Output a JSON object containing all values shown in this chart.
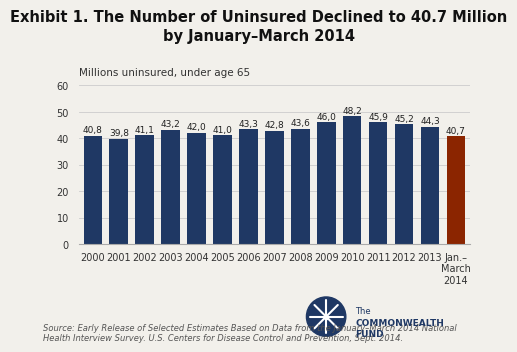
{
  "title": "Exhibit 1. The Number of Uninsured Declined to 40.7 Million\nby January–March 2014",
  "ylabel": "Millions uninsured, under age 65",
  "categories": [
    "2000",
    "2001",
    "2002",
    "2003",
    "2004",
    "2005",
    "2006",
    "2007",
    "2008",
    "2009",
    "2010",
    "2011",
    "2012",
    "2013",
    "Jan.–\nMarch\n2014"
  ],
  "values": [
    40.8,
    39.8,
    41.1,
    43.2,
    42.0,
    41.0,
    43.3,
    42.8,
    43.6,
    46.0,
    48.2,
    45.9,
    45.2,
    44.3,
    40.7
  ],
  "bar_colors": [
    "#1F3864",
    "#1F3864",
    "#1F3864",
    "#1F3864",
    "#1F3864",
    "#1F3864",
    "#1F3864",
    "#1F3864",
    "#1F3864",
    "#1F3864",
    "#1F3864",
    "#1F3864",
    "#1F3864",
    "#1F3864",
    "#8B2500"
  ],
  "ylim": [
    0,
    60
  ],
  "yticks": [
    0,
    10,
    20,
    30,
    40,
    50,
    60
  ],
  "source_text": "Source: Early Release of Selected Estimates Based on Data from the January–March 2014 National\nHealth Interview Survey. U.S. Centers for Disease Control and Prevention, Sept. 2014.",
  "title_fontsize": 10.5,
  "label_fontsize": 7,
  "bar_label_fontsize": 6.5,
  "ylabel_fontsize": 7.5,
  "source_fontsize": 6,
  "background_color": "#F2F0EB"
}
